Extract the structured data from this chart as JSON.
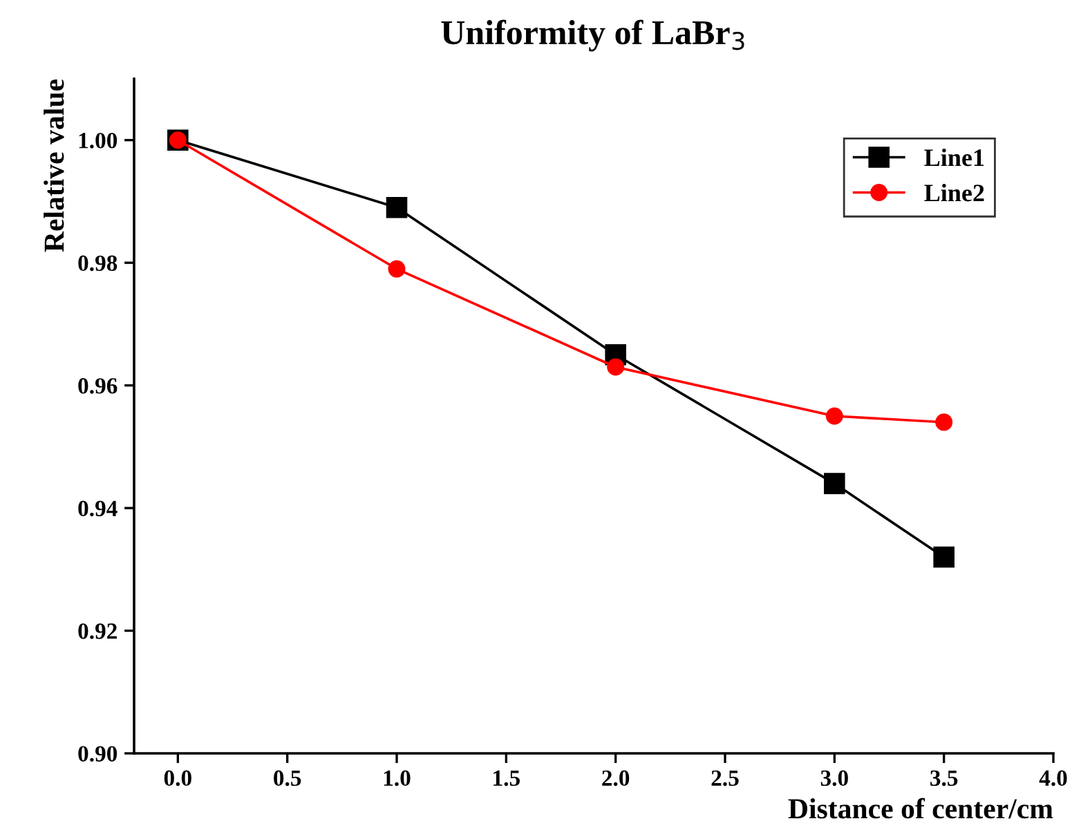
{
  "chart_data": {
    "type": "line",
    "title": "Uniformity of LaBr$_{3}$",
    "xlabel": "Distance of center/cm",
    "ylabel": "Relative value",
    "x": [
      0,
      1,
      2,
      3,
      3.5
    ],
    "series": [
      {
        "name": "Line1",
        "color": "#000000",
        "marker": "square",
        "values": [
          1.0,
          0.989,
          0.965,
          0.944,
          0.932
        ]
      },
      {
        "name": "Line2",
        "color": "#ff0000",
        "marker": "circle",
        "values": [
          1.0,
          0.979,
          0.963,
          0.955,
          0.954
        ]
      }
    ],
    "xlim": [
      -0.2,
      4.0
    ],
    "xticks": [
      {
        "value": 0,
        "label": "0.0"
      },
      0.5,
      {
        "value": 1,
        "label": "1.0"
      },
      1.5,
      {
        "value": 2,
        "label": "2.0"
      },
      2.5,
      {
        "value": 3,
        "label": "3.0"
      },
      3.5,
      {
        "value": 4,
        "label": "4.0"
      }
    ],
    "ylim": [
      0.9,
      1.01
    ],
    "yticks": [
      {
        "value": 0.9,
        "label": "0.90"
      },
      {
        "value": 0.92,
        "label": "0.92"
      },
      {
        "value": 0.94,
        "label": "0.94"
      },
      {
        "value": 0.96,
        "label": "0.96"
      },
      {
        "value": 0.98,
        "label": "0.98"
      },
      {
        "value": 1.0,
        "label": "1.00"
      }
    ],
    "grid": false,
    "legend": "top right",
    "line_style": "solid"
  }
}
